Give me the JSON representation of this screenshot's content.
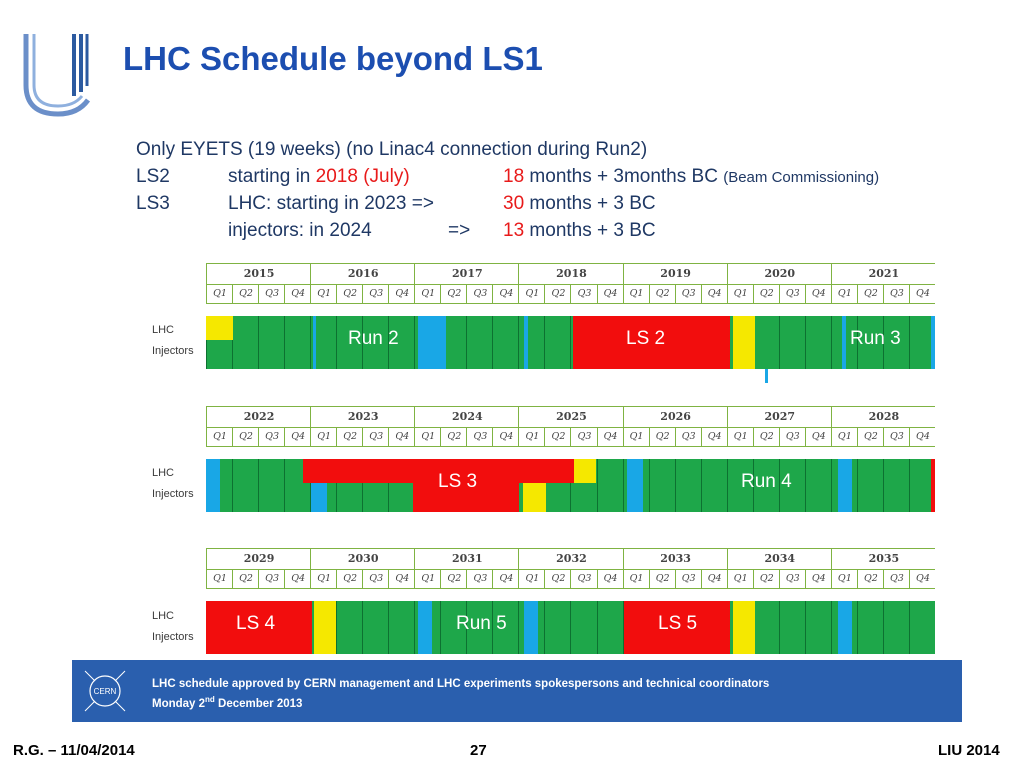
{
  "title": "LHC Schedule beyond LS1",
  "intro": {
    "line1": "Only EYETS (19 weeks)   (no Linac4 connection during Run2)",
    "ls2": {
      "label": "LS2",
      "prefix": "starting in ",
      "date": "2018 (July)",
      "num": "18",
      "rest": " months + 3months BC ",
      "note": "(Beam Commissioning)"
    },
    "ls3": {
      "label": "LS3",
      "prefix": "LHC: starting in 2023 =>",
      "num": "30",
      "rest": " months + 3 BC"
    },
    "ls3inj": {
      "prefix": "injectors: in 2024",
      "arrow": "=>",
      "num": "13",
      "rest": " months + 3 BC"
    }
  },
  "quarters": [
    "Q1",
    "Q2",
    "Q3",
    "Q4"
  ],
  "row_labels": {
    "lhc": "LHC",
    "injectors": "Injectors"
  },
  "timelines": [
    {
      "years": [
        "2015",
        "2016",
        "2017",
        "2018",
        "2019",
        "2020",
        "2021"
      ],
      "bar_labels": [
        "Run 2",
        "LS 2",
        "Run 3"
      ]
    },
    {
      "years": [
        "2022",
        "2023",
        "2024",
        "2025",
        "2026",
        "2027",
        "2028"
      ],
      "bar_labels": [
        "LS 3",
        "Run 4"
      ]
    },
    {
      "years": [
        "2029",
        "2030",
        "2031",
        "2032",
        "2033",
        "2034",
        "2035"
      ],
      "bar_labels": [
        "LS 4",
        "Run 5",
        "LS 5"
      ]
    }
  ],
  "colors": {
    "run": "#1ea74a",
    "shutdown": "#f20d0d",
    "commissioning": "#f5e800",
    "stop": "#19a7e6",
    "title": "#1c4eb0",
    "banner": "#2a5fae"
  },
  "banner": {
    "line1": "LHC schedule  approved by CERN management and LHC experiments spokespersons and technical coordinators",
    "line2_pre": "Monday 2",
    "line2_sup": "nd",
    "line2_post": " December 2013",
    "logo_text": "CERN"
  },
  "footer": {
    "left": "R.G. – 11/04/2014",
    "center": "27",
    "right": "LIU 2014"
  }
}
